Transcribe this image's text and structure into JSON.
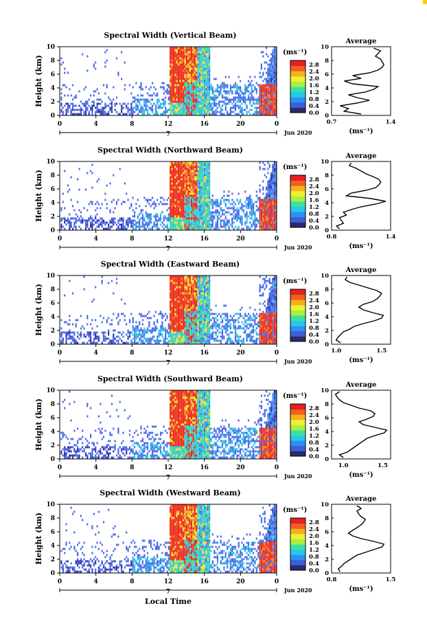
{
  "colors": {
    "colorbar": [
      "#2a2a6a",
      "#3a5fd6",
      "#2f8ff0",
      "#25c8e8",
      "#3ee0a0",
      "#a8f040",
      "#f0f030",
      "#f5b020",
      "#f06020",
      "#e82020"
    ],
    "scene": {
      "blue_dark": "#3232a8",
      "blue": "#4a6ae8",
      "cyan": "#30c0e8",
      "green": "#40e090",
      "yellow": "#f0e030",
      "orange": "#f08020",
      "red": "#ee2a1a"
    }
  },
  "chart_data": [
    {
      "type": "heatmap",
      "title": "Spectral Width (Vertical Beam)",
      "ylabel": "Height (km)",
      "xlim": [
        0,
        24
      ],
      "ylim": [
        0,
        10
      ],
      "x_ticks": [
        "0",
        "4",
        "8",
        "12",
        "16",
        "20",
        "0"
      ],
      "y_ticks": [
        "0",
        "2",
        "4",
        "6",
        "8",
        "10"
      ],
      "date_day": "7",
      "date_label": "Jun 2020",
      "units": "(ms⁻¹)",
      "colorbar_ticks": [
        "2.8",
        "2.4",
        "2.0",
        "1.6",
        "1.2",
        "0.8",
        "0.4",
        "0.0"
      ],
      "profile": {
        "title": "Average",
        "xlabel": "(ms⁻¹)",
        "x_ticks": [
          "0.7",
          "1.4"
        ],
        "xlim": [
          0.7,
          1.4
        ],
        "heights": [
          0.2,
          0.6,
          1.0,
          1.4,
          1.8,
          2.2,
          2.6,
          3.0,
          3.4,
          3.8,
          4.2,
          4.6,
          5.0,
          5.4,
          5.8,
          6.2,
          6.6,
          7.0,
          7.4,
          7.8,
          8.2,
          8.6,
          9.0,
          9.4,
          9.8
        ],
        "values": [
          1.05,
          0.85,
          0.9,
          0.8,
          1.0,
          1.15,
          1.0,
          0.9,
          1.1,
          1.2,
          1.25,
          0.95,
          0.85,
          1.05,
          0.95,
          1.15,
          1.25,
          1.3,
          1.32,
          1.3,
          1.28,
          1.22,
          1.25,
          1.28,
          1.2
        ]
      }
    },
    {
      "type": "heatmap",
      "title": "Spectral Width (Northward Beam)",
      "ylabel": "Height (km)",
      "xlim": [
        0,
        24
      ],
      "ylim": [
        0,
        10
      ],
      "x_ticks": [
        "0",
        "4",
        "8",
        "12",
        "16",
        "20",
        "0"
      ],
      "y_ticks": [
        "0",
        "2",
        "4",
        "6",
        "8",
        "10"
      ],
      "date_day": "7",
      "date_label": "Jun 2020",
      "units": "(ms⁻¹)",
      "colorbar_ticks": [
        "2.8",
        "2.4",
        "2.0",
        "1.6",
        "1.2",
        "0.8",
        "0.4",
        "0.0"
      ],
      "profile": {
        "title": "Average",
        "xlabel": "(ms⁻¹)",
        "x_ticks": [
          "0.8",
          "1.4"
        ],
        "xlim": [
          0.8,
          1.4
        ],
        "heights": [
          0.2,
          0.6,
          1.0,
          1.4,
          1.8,
          2.2,
          2.6,
          3.0,
          3.4,
          3.8,
          4.2,
          4.6,
          5.0,
          5.4,
          5.8,
          6.2,
          6.6,
          7.0,
          7.4,
          7.8,
          8.2,
          8.6,
          9.0,
          9.4,
          9.8
        ],
        "values": [
          0.88,
          0.85,
          0.92,
          0.9,
          0.88,
          0.95,
          0.92,
          1.0,
          1.1,
          1.25,
          1.35,
          1.2,
          0.95,
          1.0,
          1.15,
          1.25,
          1.28,
          1.3,
          1.28,
          1.22,
          1.15,
          1.1,
          1.05,
          0.98,
          1.0
        ]
      }
    },
    {
      "type": "heatmap",
      "title": "Spectral Width (Eastward Beam)",
      "ylabel": "Height (km)",
      "xlim": [
        0,
        24
      ],
      "ylim": [
        0,
        10
      ],
      "x_ticks": [
        "0",
        "4",
        "8",
        "12",
        "16",
        "20",
        "0"
      ],
      "y_ticks": [
        "0",
        "2",
        "4",
        "6",
        "8",
        "10"
      ],
      "date_day": "7",
      "date_label": "Jun 2020",
      "units": "(ms⁻¹)",
      "colorbar_ticks": [
        "2.8",
        "2.4",
        "2.0",
        "1.6",
        "1.2",
        "0.8",
        "0.4",
        "0.0"
      ],
      "profile": {
        "title": "Average",
        "xlabel": "(ms⁻¹)",
        "x_ticks": [
          "1.0",
          "1.5"
        ],
        "xlim": [
          0.95,
          1.6
        ],
        "heights": [
          0.2,
          0.6,
          1.0,
          1.4,
          1.8,
          2.2,
          2.6,
          3.0,
          3.4,
          3.8,
          4.2,
          4.6,
          5.0,
          5.4,
          5.8,
          6.2,
          6.6,
          7.0,
          7.4,
          7.8,
          8.2,
          8.6,
          9.0,
          9.4,
          9.8
        ],
        "values": [
          1.05,
          1.0,
          1.02,
          1.05,
          1.08,
          1.15,
          1.2,
          1.3,
          1.42,
          1.5,
          1.52,
          1.4,
          1.3,
          1.25,
          1.3,
          1.4,
          1.45,
          1.48,
          1.5,
          1.45,
          1.35,
          1.25,
          1.15,
          1.1,
          1.12
        ]
      }
    },
    {
      "type": "heatmap",
      "title": "Spectral Width (Southward Beam)",
      "ylabel": "Height (km)",
      "xlim": [
        0,
        24
      ],
      "ylim": [
        0,
        10
      ],
      "x_ticks": [
        "0",
        "4",
        "8",
        "12",
        "16",
        "20",
        "0"
      ],
      "y_ticks": [
        "0",
        "2",
        "4",
        "6",
        "8",
        "10"
      ],
      "date_day": "7",
      "date_label": "Jun 2020",
      "units": "(ms⁻¹)",
      "colorbar_ticks": [
        "2.8",
        "2.4",
        "2.0",
        "1.6",
        "1.2",
        "0.8",
        "0.4",
        "0.0"
      ],
      "profile": {
        "title": "Average",
        "xlabel": "(ms⁻¹)",
        "x_ticks": [
          "1.0",
          "1.5"
        ],
        "xlim": [
          0.85,
          1.6
        ],
        "heights": [
          0.2,
          0.6,
          1.0,
          1.4,
          1.8,
          2.2,
          2.6,
          3.0,
          3.4,
          3.8,
          4.2,
          4.6,
          5.0,
          5.4,
          5.8,
          6.2,
          6.6,
          7.0,
          7.4,
          7.8,
          8.2,
          8.6,
          9.0,
          9.4,
          9.8
        ],
        "values": [
          1.0,
          0.95,
          1.05,
          1.1,
          1.15,
          1.2,
          1.25,
          1.3,
          1.4,
          1.52,
          1.55,
          1.4,
          1.25,
          1.2,
          1.3,
          1.38,
          1.4,
          1.35,
          1.2,
          1.1,
          1.0,
          0.95,
          0.92,
          0.9,
          0.95
        ]
      }
    },
    {
      "type": "heatmap",
      "title": "Spectral Width (Westward Beam)",
      "ylabel": "Height (km)",
      "xlim": [
        0,
        24
      ],
      "ylim": [
        0,
        10
      ],
      "x_ticks": [
        "0",
        "4",
        "8",
        "12",
        "16",
        "20",
        "0"
      ],
      "y_ticks": [
        "0",
        "2",
        "4",
        "6",
        "8",
        "10"
      ],
      "date_day": "7",
      "date_label": "Jun 2020",
      "units": "(ms⁻¹)",
      "colorbar_ticks": [
        "2.8",
        "2.4",
        "2.0",
        "1.6",
        "1.2",
        "0.8",
        "0.4",
        "0.0"
      ],
      "profile": {
        "title": "Average",
        "xlabel": "(ms⁻¹)",
        "x_ticks": [
          "0.8",
          "1.5"
        ],
        "xlim": [
          0.8,
          1.5
        ],
        "heights": [
          0.2,
          0.6,
          1.0,
          1.4,
          1.8,
          2.2,
          2.6,
          3.0,
          3.4,
          3.8,
          4.2,
          4.6,
          5.0,
          5.4,
          5.8,
          6.2,
          6.6,
          7.0,
          7.4,
          7.8,
          8.2,
          8.6,
          9.0,
          9.4,
          9.8
        ],
        "values": [
          0.9,
          0.88,
          0.92,
          0.95,
          1.0,
          1.05,
          1.1,
          1.2,
          1.3,
          1.4,
          1.42,
          1.3,
          1.15,
          1.05,
          1.0,
          1.05,
          1.1,
          1.15,
          1.18,
          1.2,
          1.15,
          1.12,
          1.1,
          1.15,
          1.1
        ]
      }
    }
  ],
  "footer": {
    "xlabel": "Local Time"
  }
}
